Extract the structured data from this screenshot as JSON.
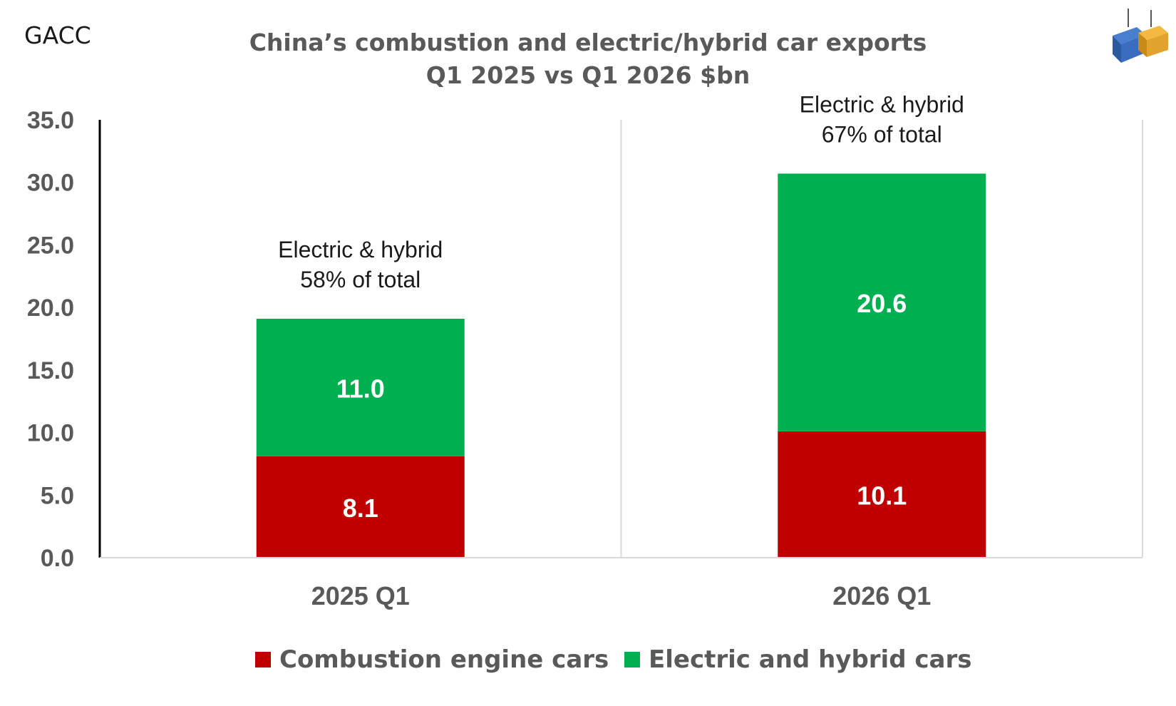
{
  "source_label": "GACC",
  "colors": {
    "combustion": "#c00000",
    "electric": "#00b050",
    "axis_text": "#595959",
    "grid": "#d9d9d9"
  },
  "chart_data": {
    "type": "bar",
    "stacked": true,
    "title": "China’s combustion and electric/hybrid car exports",
    "subtitle": "Q1 2025 vs Q1 2026 $bn",
    "categories": [
      "2025 Q1",
      "2026 Q1"
    ],
    "series": [
      {
        "name": "Combustion engine cars",
        "values": [
          8.1,
          10.1
        ],
        "color": "#c00000"
      },
      {
        "name": "Electric and hybrid cars",
        "values": [
          11.0,
          20.6
        ],
        "color": "#00b050"
      }
    ],
    "data_labels": [
      [
        "8.1",
        "10.1"
      ],
      [
        "11.0",
        "20.6"
      ]
    ],
    "annotations": [
      {
        "category": "2025 Q1",
        "line1": "Electric & hybrid",
        "line2": "58% of total"
      },
      {
        "category": "2026 Q1",
        "line1": "Electric & hybrid",
        "line2": "67% of total"
      }
    ],
    "yticks": [
      "0.0",
      "5.0",
      "10.0",
      "15.0",
      "20.0",
      "25.0",
      "30.0",
      "35.0"
    ],
    "ylim": [
      0,
      35
    ],
    "xlabel": "",
    "ylabel": "",
    "grid": false,
    "legend_position": "bottom"
  }
}
